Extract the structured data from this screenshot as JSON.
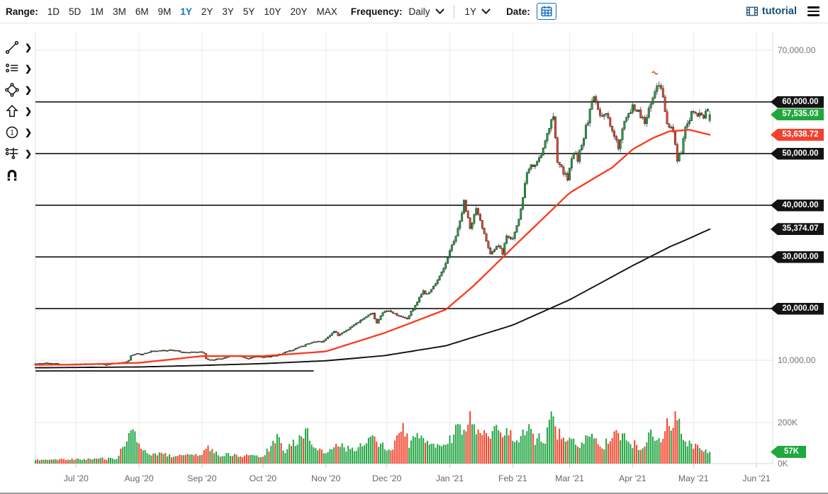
{
  "toolbar": {
    "range_label": "Range:",
    "range_options": [
      "1D",
      "5D",
      "1M",
      "3M",
      "6M",
      "9M",
      "1Y",
      "2Y",
      "3Y",
      "5Y",
      "10Y",
      "20Y",
      "MAX"
    ],
    "range_active": "1Y",
    "frequency_label": "Frequency:",
    "frequency_value": "Daily",
    "period_value": "1Y",
    "date_label": "Date:",
    "calendar_icon": "calendar-icon",
    "brand": "tutorial",
    "brand_icon": "film-grid-icon",
    "menu_icon": "hamburger-icon"
  },
  "colors": {
    "accent_blue": "#1470bf",
    "brand_navy": "#1b4f72",
    "up_green": "#22a643",
    "down_red": "#f1452d",
    "ma_fast_red": "#fa3a1d",
    "ma_slow_black": "#111111",
    "badge_black": "#141414",
    "badge_green": "#1fa83c",
    "badge_red": "#f4402e",
    "axis_text": "#757575",
    "grid_light": "#ebebeb",
    "level_dark": "#404040"
  },
  "sidebar": {
    "tools": [
      {
        "name": "trend-line-tool",
        "has_submenu": true
      },
      {
        "name": "line-list-tool",
        "has_submenu": true
      },
      {
        "name": "shape-tool",
        "has_submenu": true
      },
      {
        "name": "arrow-tool",
        "has_submenu": true
      },
      {
        "name": "annotation-number-tool",
        "has_submenu": true
      },
      {
        "name": "levels-tool",
        "has_submenu": true
      },
      {
        "name": "magnet-tool",
        "has_submenu": false
      }
    ],
    "submenu_glyph": "❯"
  },
  "axis": {
    "x_labels": [
      "Jul '20",
      "Aug '20",
      "Sep '20",
      "Oct '20",
      "Nov '20",
      "Dec '20",
      "Jan '21",
      "Feb '21",
      "Mar '21",
      "Apr '21",
      "May '21",
      "Jun '21"
    ],
    "price_plain_labels": [
      {
        "text": "70,000.00",
        "price": 70000
      },
      {
        "text": "10,000.00",
        "price": 10000
      }
    ],
    "price_badges": [
      {
        "text": "60,000.00",
        "price": 60000,
        "style": "black",
        "level_line": true
      },
      {
        "text": "57,535.03",
        "price": 57535.03,
        "style": "green",
        "level_line": false
      },
      {
        "text": "53,638.72",
        "price": 53638.72,
        "style": "red",
        "level_line": false
      },
      {
        "text": "50,000.00",
        "price": 50000,
        "style": "black",
        "level_line": true
      },
      {
        "text": "40,000.00",
        "price": 40000,
        "style": "black",
        "level_line": true
      },
      {
        "text": "35,374.07",
        "price": 35374.07,
        "style": "black",
        "level_line": false
      },
      {
        "text": "30,000.00",
        "price": 30000,
        "style": "black",
        "level_line": true
      },
      {
        "text": "20,000.00",
        "price": 20000,
        "style": "black",
        "level_line": true
      }
    ],
    "volume_labels": [
      {
        "text": "200K",
        "value": 200
      },
      {
        "text": "0K",
        "value": 0
      }
    ],
    "volume_badge": {
      "text": "57K",
      "value": 57,
      "style": "green"
    }
  },
  "chart_data": {
    "type": "candlestick",
    "panes": [
      "price",
      "volume"
    ],
    "frequency": "Daily",
    "visible_range_labels": [
      "Jul '20",
      "Jun '21"
    ],
    "price_ylim": [
      3000,
      73500
    ],
    "volume_ylim_k": [
      0,
      310
    ],
    "days_total": 332,
    "x_tick_days": [
      20,
      51,
      82,
      112,
      143,
      173,
      204,
      235,
      263,
      294,
      324,
      355
    ],
    "last_close": 57535.03,
    "last_open": 56400,
    "last_volume_k": 57,
    "ma_fast_last": 53638.72,
    "ma_slow_last": 35374.07,
    "close_anchors": [
      [
        0,
        9300
      ],
      [
        5,
        9450
      ],
      [
        10,
        9350
      ],
      [
        15,
        9150
      ],
      [
        20,
        9230
      ],
      [
        27,
        9280
      ],
      [
        35,
        9150
      ],
      [
        40,
        9400
      ],
      [
        43,
        9550
      ],
      [
        46,
        9900
      ],
      [
        47,
        10900
      ],
      [
        50,
        11350
      ],
      [
        52,
        11050
      ],
      [
        57,
        11750
      ],
      [
        66,
        11900
      ],
      [
        70,
        11850
      ],
      [
        73,
        11450
      ],
      [
        81,
        11650
      ],
      [
        83,
        11400
      ],
      [
        84,
        10200
      ],
      [
        86,
        10050
      ],
      [
        92,
        10350
      ],
      [
        96,
        10800
      ],
      [
        100,
        10900
      ],
      [
        104,
        10250
      ],
      [
        109,
        10700
      ],
      [
        112,
        10600
      ],
      [
        119,
        10950
      ],
      [
        123,
        11550
      ],
      [
        132,
        12800
      ],
      [
        138,
        13650
      ],
      [
        141,
        13550
      ],
      [
        147,
        15600
      ],
      [
        149,
        14850
      ],
      [
        155,
        16300
      ],
      [
        160,
        17800
      ],
      [
        166,
        19150
      ],
      [
        168,
        17150
      ],
      [
        172,
        19625
      ],
      [
        175,
        19400
      ],
      [
        180,
        18300
      ],
      [
        183,
        18050
      ],
      [
        188,
        21300
      ],
      [
        191,
        23400
      ],
      [
        193,
        22700
      ],
      [
        197,
        24700
      ],
      [
        199,
        26250
      ],
      [
        202,
        28900
      ],
      [
        205,
        32200
      ],
      [
        206,
        33000
      ],
      [
        209,
        36800
      ],
      [
        211,
        40600
      ],
      [
        214,
        35500
      ],
      [
        217,
        39300
      ],
      [
        220,
        35800
      ],
      [
        224,
        30800
      ],
      [
        228,
        32250
      ],
      [
        230,
        30400
      ],
      [
        232,
        34300
      ],
      [
        235,
        33500
      ],
      [
        238,
        36950
      ],
      [
        242,
        46200
      ],
      [
        245,
        47900
      ],
      [
        248,
        48700
      ],
      [
        251,
        52100
      ],
      [
        255,
        57500
      ],
      [
        257,
        48800
      ],
      [
        260,
        46300
      ],
      [
        262,
        45100
      ],
      [
        265,
        50400
      ],
      [
        267,
        48900
      ],
      [
        271,
        54900
      ],
      [
        275,
        61200
      ],
      [
        278,
        56900
      ],
      [
        281,
        58100
      ],
      [
        284,
        54100
      ],
      [
        287,
        51300
      ],
      [
        290,
        55800
      ],
      [
        294,
        58900
      ],
      [
        297,
        58200
      ],
      [
        300,
        56000
      ],
      [
        303,
        59800
      ],
      [
        306,
        63500
      ],
      [
        307,
        63100
      ],
      [
        309,
        61100
      ],
      [
        311,
        56200
      ],
      [
        314,
        53800
      ],
      [
        316,
        49000
      ],
      [
        318,
        50000
      ],
      [
        320,
        55000
      ],
      [
        323,
        57750
      ],
      [
        326,
        57200
      ],
      [
        328,
        57400
      ],
      [
        329,
        56400
      ],
      [
        331,
        58850
      ],
      [
        332,
        57535.03
      ]
    ],
    "ma_fast_anchors": [
      [
        0,
        9100
      ],
      [
        20,
        9150
      ],
      [
        51,
        9500
      ],
      [
        82,
        10800
      ],
      [
        112,
        10800
      ],
      [
        143,
        11700
      ],
      [
        172,
        15300
      ],
      [
        202,
        19800
      ],
      [
        216,
        24500
      ],
      [
        235,
        31800
      ],
      [
        263,
        42400
      ],
      [
        284,
        47300
      ],
      [
        294,
        50800
      ],
      [
        304,
        53000
      ],
      [
        312,
        54300
      ],
      [
        322,
        54600
      ],
      [
        332,
        53638.72
      ]
    ],
    "ma_slow_anchors": [
      [
        0,
        8550
      ],
      [
        51,
        8700
      ],
      [
        82,
        9000
      ],
      [
        112,
        9350
      ],
      [
        143,
        9900
      ],
      [
        172,
        10900
      ],
      [
        202,
        12800
      ],
      [
        235,
        16800
      ],
      [
        263,
        21700
      ],
      [
        294,
        28300
      ],
      [
        312,
        31900
      ],
      [
        322,
        33600
      ],
      [
        332,
        35374.07
      ]
    ],
    "volume_anchors_k": [
      [
        0,
        18
      ],
      [
        20,
        22
      ],
      [
        40,
        25
      ],
      [
        46,
        140
      ],
      [
        48,
        150
      ],
      [
        52,
        60
      ],
      [
        60,
        45
      ],
      [
        70,
        35
      ],
      [
        81,
        40
      ],
      [
        84,
        85
      ],
      [
        90,
        45
      ],
      [
        100,
        38
      ],
      [
        112,
        35
      ],
      [
        119,
        120
      ],
      [
        123,
        60
      ],
      [
        133,
        160
      ],
      [
        140,
        60
      ],
      [
        143,
        50
      ],
      [
        147,
        90
      ],
      [
        155,
        70
      ],
      [
        160,
        80
      ],
      [
        166,
        150
      ],
      [
        168,
        110
      ],
      [
        172,
        85
      ],
      [
        176,
        70
      ],
      [
        181,
        185
      ],
      [
        184,
        90
      ],
      [
        188,
        140
      ],
      [
        191,
        120
      ],
      [
        197,
        95
      ],
      [
        202,
        100
      ],
      [
        205,
        130
      ],
      [
        209,
        195
      ],
      [
        211,
        160
      ],
      [
        214,
        258
      ],
      [
        217,
        150
      ],
      [
        220,
        140
      ],
      [
        224,
        140
      ],
      [
        227,
        155
      ],
      [
        230,
        120
      ],
      [
        232,
        205
      ],
      [
        235,
        100
      ],
      [
        238,
        115
      ],
      [
        242,
        165
      ],
      [
        246,
        120
      ],
      [
        251,
        125
      ],
      [
        253,
        240
      ],
      [
        257,
        150
      ],
      [
        260,
        120
      ],
      [
        263,
        110
      ],
      [
        268,
        95
      ],
      [
        272,
        130
      ],
      [
        275,
        115
      ],
      [
        280,
        90
      ],
      [
        285,
        175
      ],
      [
        290,
        120
      ],
      [
        294,
        95
      ],
      [
        298,
        80
      ],
      [
        303,
        150
      ],
      [
        307,
        110
      ],
      [
        311,
        180
      ],
      [
        315,
        230
      ],
      [
        319,
        120
      ],
      [
        323,
        90
      ],
      [
        326,
        75
      ],
      [
        329,
        65
      ],
      [
        332,
        57
      ]
    ],
    "drawn_horizontal_line": {
      "day_start": 0,
      "day_end": 137,
      "price": 7930
    },
    "annotation_marker": {
      "day": 305,
      "price": 65600,
      "color": "#e23a24"
    }
  }
}
